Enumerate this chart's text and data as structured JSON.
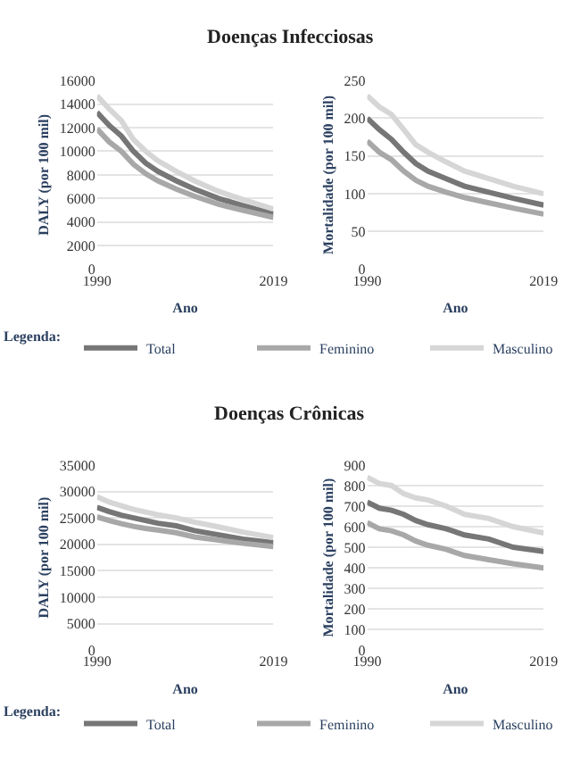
{
  "chart_data": [
    {
      "type": "line",
      "title": "Doenças Infecciosas",
      "xlabel": "Ano",
      "ylabel": "DALY (por 100 mil)",
      "x": [
        1990,
        1992,
        1994,
        1996,
        1998,
        2000,
        2003,
        2006,
        2010,
        2014,
        2019
      ],
      "xlim": [
        1990,
        2019
      ],
      "xticks": [
        1990,
        2019
      ],
      "ylim": [
        0,
        16000
      ],
      "yticks": [
        0,
        2000,
        4000,
        6000,
        8000,
        10000,
        12000,
        14000,
        16000
      ],
      "grid": "y",
      "legend": "bottom",
      "legend_title": "Legenda:",
      "series": [
        {
          "name": "Total",
          "color": "#767676",
          "values": [
            13300,
            12200,
            11300,
            10000,
            9000,
            8300,
            7500,
            6800,
            6000,
            5400,
            4700
          ]
        },
        {
          "name": "Feminino",
          "color": "#a8a8a8",
          "values": [
            11900,
            10800,
            10000,
            8900,
            8100,
            7500,
            6800,
            6200,
            5500,
            5000,
            4400
          ]
        },
        {
          "name": "Masculino",
          "color": "#d6d6d6",
          "values": [
            14700,
            13600,
            12600,
            11000,
            10000,
            9200,
            8300,
            7500,
            6600,
            5900,
            5100
          ]
        }
      ]
    },
    {
      "type": "line",
      "xlabel": "Ano",
      "ylabel": "Mortalidade (por 100 mil)",
      "x": [
        1990,
        1992,
        1994,
        1996,
        1998,
        2000,
        2003,
        2006,
        2010,
        2014,
        2019
      ],
      "xlim": [
        1990,
        2019
      ],
      "xticks": [
        1990,
        2019
      ],
      "ylim": [
        0,
        250
      ],
      "yticks": [
        0,
        50,
        100,
        150,
        200,
        250
      ],
      "grid": "y",
      "series": [
        {
          "color": "#767676",
          "values": [
            200,
            185,
            172,
            155,
            140,
            130,
            120,
            110,
            102,
            94,
            85
          ]
        },
        {
          "color": "#a8a8a8",
          "values": [
            170,
            155,
            145,
            130,
            118,
            110,
            102,
            95,
            88,
            81,
            73
          ]
        },
        {
          "color": "#d6d6d6",
          "values": [
            230,
            215,
            205,
            185,
            165,
            155,
            142,
            130,
            120,
            110,
            100
          ]
        }
      ]
    },
    {
      "type": "line",
      "title": "Doenças Crônicas",
      "xlabel": "Ano",
      "ylabel": "DALY (por 100 mil)",
      "x": [
        1990,
        1992,
        1994,
        1996,
        1998,
        2000,
        2003,
        2006,
        2010,
        2014,
        2019
      ],
      "xlim": [
        1990,
        2019
      ],
      "xticks": [
        1990,
        2019
      ],
      "ylim": [
        0,
        35000
      ],
      "yticks": [
        0,
        5000,
        10000,
        15000,
        20000,
        25000,
        30000,
        35000
      ],
      "grid": "y",
      "legend": "bottom",
      "legend_title": "Legenda:",
      "series": [
        {
          "name": "Total",
          "color": "#767676",
          "values": [
            27000,
            26200,
            25500,
            25000,
            24500,
            24000,
            23500,
            22600,
            21800,
            21000,
            20300
          ]
        },
        {
          "name": "Feminino",
          "color": "#a8a8a8",
          "values": [
            25200,
            24500,
            23900,
            23400,
            23000,
            22700,
            22200,
            21400,
            20800,
            20200,
            19600
          ]
        },
        {
          "name": "Masculino",
          "color": "#d6d6d6",
          "values": [
            29000,
            28000,
            27300,
            26600,
            26100,
            25600,
            25000,
            24200,
            23300,
            22300,
            21300
          ]
        }
      ]
    },
    {
      "type": "line",
      "xlabel": "Ano",
      "ylabel": "Mortalidade (por 100 mil)",
      "x": [
        1990,
        1992,
        1994,
        1996,
        1998,
        2000,
        2003,
        2006,
        2010,
        2014,
        2019
      ],
      "xlim": [
        1990,
        2019
      ],
      "xticks": [
        1990,
        2019
      ],
      "ylim": [
        0,
        900
      ],
      "yticks": [
        0,
        100,
        200,
        300,
        400,
        500,
        600,
        700,
        800,
        900
      ],
      "grid": "y",
      "series": [
        {
          "color": "#767676",
          "values": [
            720,
            690,
            680,
            660,
            630,
            610,
            590,
            560,
            540,
            500,
            480
          ]
        },
        {
          "color": "#a8a8a8",
          "values": [
            620,
            590,
            580,
            560,
            530,
            510,
            490,
            460,
            440,
            420,
            400
          ]
        },
        {
          "color": "#d6d6d6",
          "values": [
            840,
            810,
            800,
            760,
            740,
            730,
            700,
            660,
            640,
            600,
            570
          ]
        }
      ]
    }
  ]
}
